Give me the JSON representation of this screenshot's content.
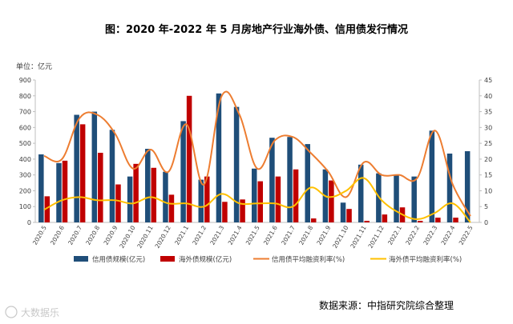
{
  "chart_data": {
    "type": "bar",
    "title": "图：2020 年-2022 年 5 月房地产行业海外债、信用债发行情况",
    "unit_label": "单位：亿元",
    "source": "数据来源：中指研究院综合整理",
    "watermark": "大数据乐",
    "categories": [
      "2020.5",
      "2020.6",
      "2020.7",
      "2020.8",
      "2020.9",
      "2020.10",
      "2020.11",
      "2020.12",
      "2021.1",
      "2021.2",
      "2021.3",
      "2021.4",
      "2021.5",
      "2021.6",
      "2021.7",
      "2021.8",
      "2021.9",
      "2021.10",
      "2021.11",
      "2021.12",
      "2022.1",
      "2022.2",
      "2022.3",
      "2022.4",
      "2022.5"
    ],
    "y_left": {
      "min": 0,
      "max": 900,
      "step": 100,
      "ticks": [
        "0",
        "100",
        "200",
        "300",
        "400",
        "500",
        "600",
        "700",
        "800",
        "900"
      ]
    },
    "y_right": {
      "min": 0,
      "max": 45,
      "step": 5,
      "ticks": [
        "0",
        "5",
        "10",
        "15",
        "20",
        "25",
        "30",
        "35",
        "40",
        "45"
      ]
    },
    "series": [
      {
        "name": "信用债规模(亿元)",
        "type": "bar",
        "axis": "left",
        "color": "#1f4e79",
        "values": [
          430,
          375,
          680,
          700,
          585,
          290,
          465,
          320,
          640,
          270,
          815,
          730,
          340,
          535,
          540,
          495,
          335,
          125,
          365,
          310,
          300,
          290,
          580,
          435,
          450
        ]
      },
      {
        "name": "海外债规模(亿元)",
        "type": "bar",
        "axis": "left",
        "color": "#c00000",
        "values": [
          165,
          390,
          620,
          440,
          240,
          370,
          345,
          175,
          800,
          290,
          130,
          145,
          260,
          290,
          335,
          25,
          265,
          85,
          10,
          50,
          95,
          10,
          30,
          30,
          0
        ]
      },
      {
        "name": "信用债平均融资利率(%)",
        "type": "line",
        "axis": "right",
        "color": "#ed7d31",
        "values": [
          21,
          20,
          33,
          34,
          28,
          17,
          23,
          16,
          31,
          12,
          40,
          34,
          17,
          26,
          27,
          22,
          16,
          8,
          19,
          15,
          15,
          14,
          29,
          12,
          2
        ]
      },
      {
        "name": "海外债平均融资利率(%)",
        "type": "line",
        "axis": "right",
        "color": "#ffc000",
        "values": [
          4,
          7,
          8,
          7,
          7,
          6,
          8,
          6,
          6,
          5,
          9,
          6,
          6,
          6,
          5,
          11,
          8,
          10,
          14,
          7,
          3,
          1,
          3,
          6,
          0
        ]
      }
    ],
    "legend_position": "bottom"
  },
  "colors": {
    "axis": "#bfbfbf",
    "text": "#404040",
    "title": "#000000"
  }
}
